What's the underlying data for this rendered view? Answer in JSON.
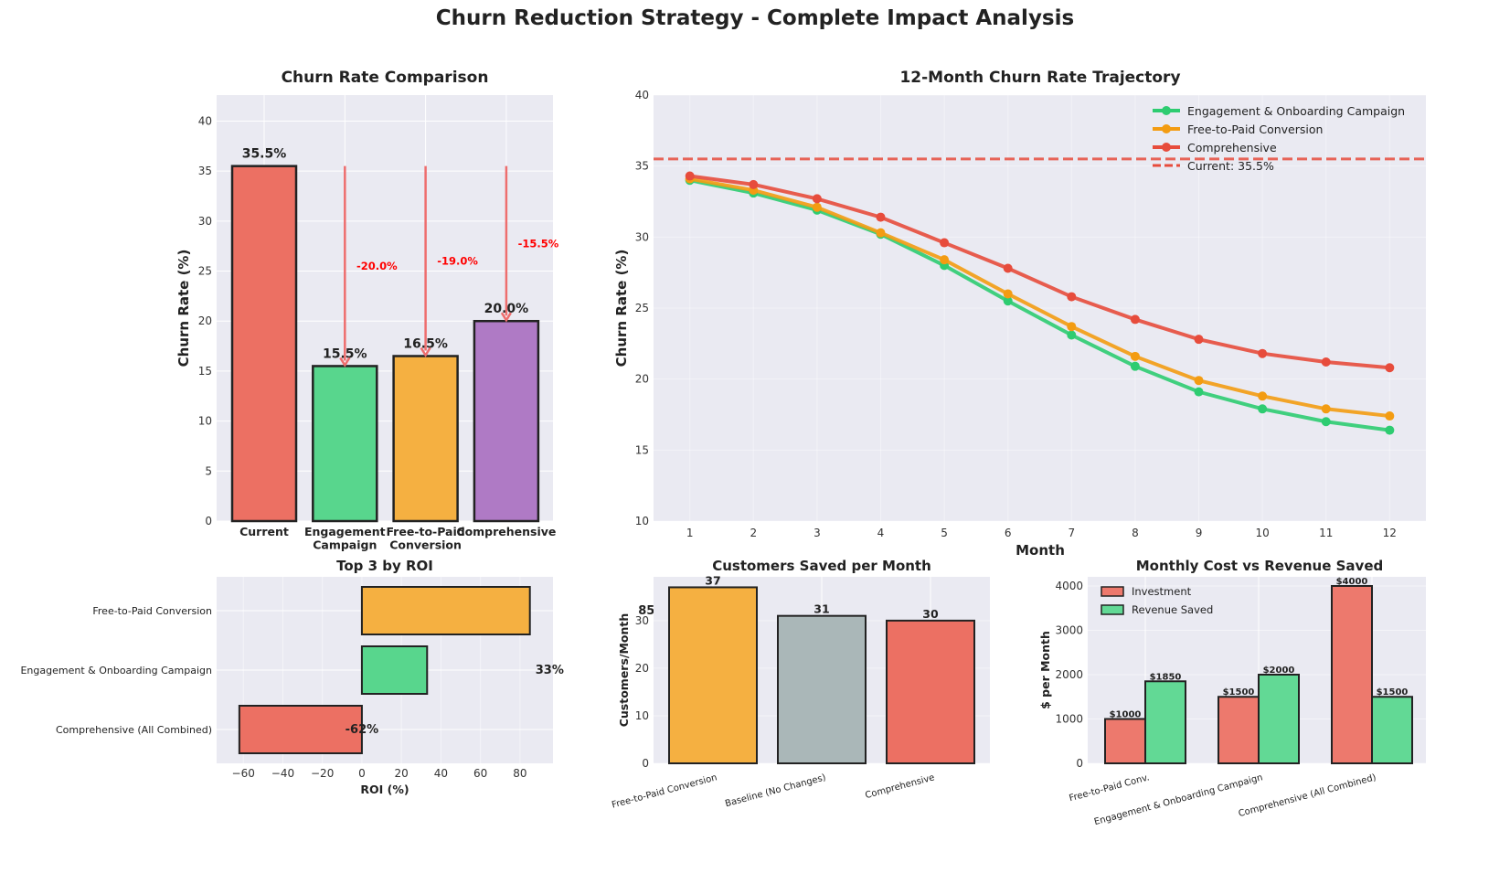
{
  "figure_title": "Churn Reduction Strategy - Complete Impact Analysis",
  "colors": {
    "red": "#e74c3c",
    "green": "#2ecc71",
    "orange": "#f39c12",
    "purple": "#9b59b6",
    "gray": "#95a5a6",
    "axes_bg": "#eaeaf2",
    "annotation": "#ff0000"
  },
  "chart_data": [
    {
      "type": "bar",
      "title": "Churn Rate Comparison",
      "xlabel": "",
      "ylabel": "Churn Rate (%)",
      "categories": [
        "Current",
        "Engagement\nCampaign",
        "Free-to-Paid\nConversion",
        "Comprehensive"
      ],
      "values": [
        35.5,
        15.5,
        16.5,
        20.0
      ],
      "value_labels": [
        "35.5%",
        "15.5%",
        "16.5%",
        "20.0%"
      ],
      "bar_colors": [
        "#e74c3c",
        "#2ecc71",
        "#f39c12",
        "#9b59b6"
      ],
      "annotations": [
        {
          "target": "Engagement\nCampaign",
          "text": "-20.0%"
        },
        {
          "target": "Free-to-Paid\nConversion",
          "text": "-19.0%"
        },
        {
          "target": "Comprehensive",
          "text": "-15.5%"
        }
      ],
      "ylim": [
        0,
        42.6
      ],
      "yticks": [
        0,
        5,
        10,
        15,
        20,
        25,
        30,
        35,
        40
      ],
      "grid": true
    },
    {
      "type": "line",
      "title": "12-Month Churn Rate Trajectory",
      "xlabel": "Month",
      "ylabel": "Churn Rate (%)",
      "x": [
        1,
        2,
        3,
        4,
        5,
        6,
        7,
        8,
        9,
        10,
        11,
        12
      ],
      "series": [
        {
          "name": "Engagement & Onboarding Campaign",
          "color": "#2ecc71",
          "values": [
            34.0,
            33.1,
            31.9,
            30.2,
            28.0,
            25.5,
            23.1,
            20.9,
            19.1,
            17.9,
            17.0,
            16.4
          ]
        },
        {
          "name": "Free-to-Paid Conversion",
          "color": "#f39c12",
          "values": [
            34.1,
            33.3,
            32.1,
            30.3,
            28.4,
            26.0,
            23.7,
            21.6,
            19.9,
            18.8,
            17.9,
            17.4
          ]
        },
        {
          "name": "Comprehensive",
          "color": "#e74c3c",
          "values": [
            34.3,
            33.7,
            32.7,
            31.4,
            29.6,
            27.8,
            25.8,
            24.2,
            22.8,
            21.8,
            21.2,
            20.8
          ]
        }
      ],
      "reference_line": {
        "name": "Current: 35.5%",
        "value": 35.5,
        "color": "#e74c3c"
      },
      "xlim": [
        0.43,
        12.57
      ],
      "ylim": [
        10,
        40
      ],
      "yticks": [
        10,
        15,
        20,
        25,
        30,
        35,
        40
      ],
      "legend": "top-right",
      "grid": true
    },
    {
      "type": "bar",
      "orientation": "horizontal",
      "title": "Top 3 by ROI",
      "xlabel": "ROI (%)",
      "categories": [
        "Free-to-Paid Conversion",
        "Engagement & Onboarding Campaign",
        "Comprehensive (All Combined)"
      ],
      "values": [
        85,
        33,
        -62
      ],
      "value_labels": [
        "85%",
        "33%",
        "-62%"
      ],
      "bar_colors": [
        "#f39c12",
        "#2ecc71",
        "#e74c3c"
      ],
      "xlim": [
        -73.5,
        96.7
      ],
      "xticks": [
        -60,
        -40,
        -20,
        0,
        20,
        40,
        60,
        80
      ],
      "grid": true
    },
    {
      "type": "bar",
      "title": "Customers Saved per Month",
      "ylabel": "Customers/Month",
      "categories": [
        "Free-to-Paid Conversion",
        "Baseline (No Changes)",
        "Comprehensive"
      ],
      "values": [
        37,
        31,
        30
      ],
      "value_labels": [
        "37",
        "31",
        "30"
      ],
      "bar_colors": [
        "#f39c12",
        "#95a5a6",
        "#e74c3c"
      ],
      "ylim": [
        0,
        39.2
      ],
      "yticks": [
        0,
        10,
        20,
        30
      ],
      "grid": true
    },
    {
      "type": "bar",
      "title": "Monthly Cost vs Revenue Saved",
      "ylabel": "$ per Month",
      "categories": [
        "Free-to-Paid Conv.",
        "Engagement & Onboarding Campaign",
        "Comprehensive (All Combined)"
      ],
      "series": [
        {
          "name": "Investment",
          "color": "#e74c3c",
          "values": [
            1000,
            1500,
            4000
          ],
          "value_labels": [
            "$1000",
            "$1500",
            "$4000"
          ]
        },
        {
          "name": "Revenue Saved",
          "color": "#2ecc71",
          "values": [
            1850,
            2000,
            1500
          ],
          "value_labels": [
            "$1850",
            "$2000",
            "$1500"
          ]
        }
      ],
      "ylim": [
        0,
        4206
      ],
      "yticks": [
        0,
        1000,
        2000,
        3000,
        4000
      ],
      "legend": "top-left",
      "grid": true
    }
  ]
}
